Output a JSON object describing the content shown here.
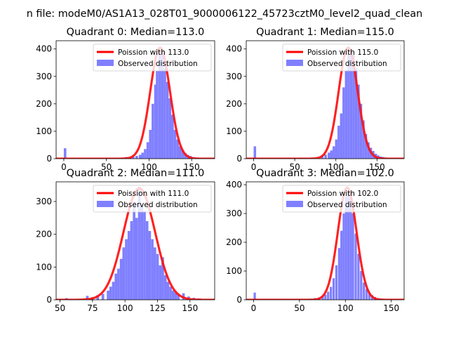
{
  "figure": {
    "suptitle": "n file: modeM0/AS1A13_028T01_9000006122_45723cztM0_level2_quad_clean"
  },
  "chart_data": [
    {
      "type": "bar",
      "title": "Quadrant 0: Median=113.0",
      "xlabel": "",
      "ylabel": "",
      "xlim": [
        -9,
        177
      ],
      "ylim": [
        0,
        430
      ],
      "xticks": [
        0,
        50,
        100,
        150
      ],
      "yticks": [
        0,
        100,
        200,
        300,
        400
      ],
      "legend_position": "upper-right",
      "series": [
        {
          "name": "Poission with 113.0",
          "kind": "line",
          "color": "#ff0000",
          "mean": 113.0,
          "peak": 405,
          "sigma": 11.6
        },
        {
          "name": "Observed distribution",
          "kind": "histogram",
          "color": "#8080ff",
          "bins": [
            {
              "x": 0,
              "w": 3,
              "v": 38
            },
            {
              "x": 62,
              "w": 3,
              "v": 3
            },
            {
              "x": 68,
              "w": 3,
              "v": 4
            },
            {
              "x": 72,
              "w": 3,
              "v": 6
            },
            {
              "x": 76,
              "w": 3,
              "v": 4
            },
            {
              "x": 80,
              "w": 3,
              "v": 8
            },
            {
              "x": 84,
              "w": 3,
              "v": 10
            },
            {
              "x": 88,
              "w": 3,
              "v": 14
            },
            {
              "x": 91,
              "w": 3,
              "v": 22
            },
            {
              "x": 94,
              "w": 3,
              "v": 35
            },
            {
              "x": 97,
              "w": 3,
              "v": 60
            },
            {
              "x": 100,
              "w": 3,
              "v": 105
            },
            {
              "x": 103,
              "w": 3,
              "v": 200
            },
            {
              "x": 106,
              "w": 3,
              "v": 270
            },
            {
              "x": 108,
              "w": 3,
              "v": 320
            },
            {
              "x": 111,
              "w": 3,
              "v": 390
            },
            {
              "x": 114,
              "w": 3,
              "v": 385
            },
            {
              "x": 117,
              "w": 3,
              "v": 330
            },
            {
              "x": 120,
              "w": 3,
              "v": 280
            },
            {
              "x": 123,
              "w": 3,
              "v": 220
            },
            {
              "x": 126,
              "w": 3,
              "v": 160
            },
            {
              "x": 129,
              "w": 3,
              "v": 105
            },
            {
              "x": 132,
              "w": 3,
              "v": 70
            },
            {
              "x": 135,
              "w": 3,
              "v": 45
            },
            {
              "x": 138,
              "w": 3,
              "v": 30
            },
            {
              "x": 141,
              "w": 3,
              "v": 20
            },
            {
              "x": 144,
              "w": 3,
              "v": 14
            },
            {
              "x": 147,
              "w": 3,
              "v": 10
            },
            {
              "x": 150,
              "w": 3,
              "v": 6
            },
            {
              "x": 153,
              "w": 3,
              "v": 4
            },
            {
              "x": 156,
              "w": 3,
              "v": 3
            }
          ]
        }
      ]
    },
    {
      "type": "bar",
      "title": "Quadrant 1: Median=115.0",
      "xlabel": "",
      "ylabel": "",
      "xlim": [
        -9,
        183
      ],
      "ylim": [
        0,
        430
      ],
      "xticks": [
        0,
        50,
        100,
        150
      ],
      "yticks": [
        0,
        100,
        200,
        300,
        400
      ],
      "legend_position": "upper-right",
      "series": [
        {
          "name": "Poission with 115.0",
          "kind": "line",
          "color": "#ff0000",
          "mean": 115.0,
          "peak": 405,
          "sigma": 11.6
        },
        {
          "name": "Observed distribution",
          "kind": "histogram",
          "color": "#8080ff",
          "bins": [
            {
              "x": 0,
              "w": 3,
              "v": 45
            },
            {
              "x": 70,
              "w": 3,
              "v": 4
            },
            {
              "x": 76,
              "w": 3,
              "v": 6
            },
            {
              "x": 82,
              "w": 3,
              "v": 10
            },
            {
              "x": 86,
              "w": 3,
              "v": 15
            },
            {
              "x": 90,
              "w": 3,
              "v": 22
            },
            {
              "x": 93,
              "w": 3,
              "v": 30
            },
            {
              "x": 96,
              "w": 3,
              "v": 45
            },
            {
              "x": 99,
              "w": 3,
              "v": 70
            },
            {
              "x": 102,
              "w": 3,
              "v": 120
            },
            {
              "x": 105,
              "w": 3,
              "v": 165
            },
            {
              "x": 108,
              "w": 3,
              "v": 260
            },
            {
              "x": 111,
              "w": 3,
              "v": 320
            },
            {
              "x": 114,
              "w": 3,
              "v": 385
            },
            {
              "x": 117,
              "w": 3,
              "v": 400
            },
            {
              "x": 120,
              "w": 3,
              "v": 380
            },
            {
              "x": 123,
              "w": 3,
              "v": 330
            },
            {
              "x": 126,
              "w": 3,
              "v": 270
            },
            {
              "x": 129,
              "w": 3,
              "v": 200
            },
            {
              "x": 132,
              "w": 3,
              "v": 140
            },
            {
              "x": 135,
              "w": 3,
              "v": 90
            },
            {
              "x": 138,
              "w": 3,
              "v": 60
            },
            {
              "x": 141,
              "w": 3,
              "v": 40
            },
            {
              "x": 144,
              "w": 3,
              "v": 28
            },
            {
              "x": 147,
              "w": 3,
              "v": 18
            },
            {
              "x": 150,
              "w": 3,
              "v": 12
            },
            {
              "x": 153,
              "w": 3,
              "v": 8
            },
            {
              "x": 156,
              "w": 3,
              "v": 6
            },
            {
              "x": 160,
              "w": 3,
              "v": 4
            }
          ]
        }
      ]
    },
    {
      "type": "bar",
      "title": "Quadrant 2: Median=111.0",
      "xlabel": "",
      "ylabel": "",
      "xlim": [
        47,
        169
      ],
      "ylim": [
        0,
        360
      ],
      "xticks": [
        50,
        75,
        100,
        125,
        150
      ],
      "yticks": [
        0,
        100,
        200,
        300
      ],
      "legend_position": "upper-right",
      "series": [
        {
          "name": "Poission with 111.0",
          "kind": "line",
          "color": "#ff0000",
          "mean": 111.0,
          "peak": 340,
          "sigma": 12.2
        },
        {
          "name": "Observed distribution",
          "kind": "histogram",
          "color": "#8080ff",
          "bins": [
            {
              "x": 54,
              "w": 2,
              "v": 5
            },
            {
              "x": 70,
              "w": 2,
              "v": 12
            },
            {
              "x": 74,
              "w": 2,
              "v": 8
            },
            {
              "x": 78,
              "w": 2,
              "v": 14
            },
            {
              "x": 82,
              "w": 2,
              "v": 18
            },
            {
              "x": 86,
              "w": 2,
              "v": 28
            },
            {
              "x": 88,
              "w": 2,
              "v": 40
            },
            {
              "x": 90,
              "w": 2,
              "v": 55
            },
            {
              "x": 92,
              "w": 2,
              "v": 80
            },
            {
              "x": 94,
              "w": 2,
              "v": 95
            },
            {
              "x": 96,
              "w": 2,
              "v": 125
            },
            {
              "x": 98,
              "w": 2,
              "v": 160
            },
            {
              "x": 100,
              "w": 2,
              "v": 185
            },
            {
              "x": 102,
              "w": 2,
              "v": 210
            },
            {
              "x": 104,
              "w": 2,
              "v": 240
            },
            {
              "x": 106,
              "w": 2,
              "v": 300
            },
            {
              "x": 108,
              "w": 2,
              "v": 250
            },
            {
              "x": 110,
              "w": 2,
              "v": 345
            },
            {
              "x": 112,
              "w": 2,
              "v": 290
            },
            {
              "x": 114,
              "w": 2,
              "v": 270
            },
            {
              "x": 116,
              "w": 2,
              "v": 240
            },
            {
              "x": 118,
              "w": 2,
              "v": 210
            },
            {
              "x": 120,
              "w": 2,
              "v": 185
            },
            {
              "x": 122,
              "w": 2,
              "v": 160
            },
            {
              "x": 124,
              "w": 2,
              "v": 140
            },
            {
              "x": 126,
              "w": 2,
              "v": 105
            },
            {
              "x": 128,
              "w": 2,
              "v": 130
            },
            {
              "x": 130,
              "w": 2,
              "v": 75
            },
            {
              "x": 132,
              "w": 2,
              "v": 55
            },
            {
              "x": 134,
              "w": 2,
              "v": 40
            },
            {
              "x": 136,
              "w": 2,
              "v": 28
            },
            {
              "x": 138,
              "w": 2,
              "v": 22
            },
            {
              "x": 140,
              "w": 2,
              "v": 16
            },
            {
              "x": 144,
              "w": 2,
              "v": 20
            },
            {
              "x": 148,
              "w": 2,
              "v": 10
            },
            {
              "x": 152,
              "w": 2,
              "v": 6
            },
            {
              "x": 156,
              "w": 2,
              "v": 4
            }
          ]
        }
      ]
    },
    {
      "type": "bar",
      "title": "Quadrant 3: Median=102.0",
      "xlabel": "",
      "ylabel": "",
      "xlim": [
        -8,
        164
      ],
      "ylim": [
        0,
        410
      ],
      "xticks": [
        0,
        50,
        100,
        150
      ],
      "yticks": [
        0,
        100,
        200,
        300,
        400
      ],
      "legend_position": "upper-right",
      "series": [
        {
          "name": "Poission with 102.0",
          "kind": "line",
          "color": "#ff0000",
          "mean": 102.0,
          "peak": 390,
          "sigma": 10.2
        },
        {
          "name": "Observed distribution",
          "kind": "histogram",
          "color": "#8080ff",
          "bins": [
            {
              "x": 0,
              "w": 2.5,
              "v": 25
            },
            {
              "x": 60,
              "w": 2.5,
              "v": 4
            },
            {
              "x": 66,
              "w": 2.5,
              "v": 6
            },
            {
              "x": 70,
              "w": 2.5,
              "v": 8
            },
            {
              "x": 74,
              "w": 2.5,
              "v": 12
            },
            {
              "x": 77,
              "w": 2.5,
              "v": 18
            },
            {
              "x": 80,
              "w": 2.5,
              "v": 28
            },
            {
              "x": 83,
              "w": 2.5,
              "v": 45
            },
            {
              "x": 86,
              "w": 2.5,
              "v": 75
            },
            {
              "x": 89,
              "w": 2.5,
              "v": 120
            },
            {
              "x": 92,
              "w": 2.5,
              "v": 180
            },
            {
              "x": 94.5,
              "w": 2.5,
              "v": 240
            },
            {
              "x": 97,
              "w": 2.5,
              "v": 300
            },
            {
              "x": 99.5,
              "w": 2.5,
              "v": 360
            },
            {
              "x": 102,
              "w": 2.5,
              "v": 380
            },
            {
              "x": 104.5,
              "w": 2.5,
              "v": 355
            },
            {
              "x": 107,
              "w": 2.5,
              "v": 300
            },
            {
              "x": 110,
              "w": 2.5,
              "v": 230
            },
            {
              "x": 113,
              "w": 2.5,
              "v": 160
            },
            {
              "x": 116,
              "w": 2.5,
              "v": 100
            },
            {
              "x": 119,
              "w": 2.5,
              "v": 60
            },
            {
              "x": 122,
              "w": 2.5,
              "v": 38
            },
            {
              "x": 125,
              "w": 2.5,
              "v": 24
            },
            {
              "x": 128,
              "w": 2.5,
              "v": 16
            },
            {
              "x": 131,
              "w": 2.5,
              "v": 10
            },
            {
              "x": 134,
              "w": 2.5,
              "v": 6
            },
            {
              "x": 138,
              "w": 2.5,
              "v": 4
            }
          ]
        }
      ]
    }
  ]
}
